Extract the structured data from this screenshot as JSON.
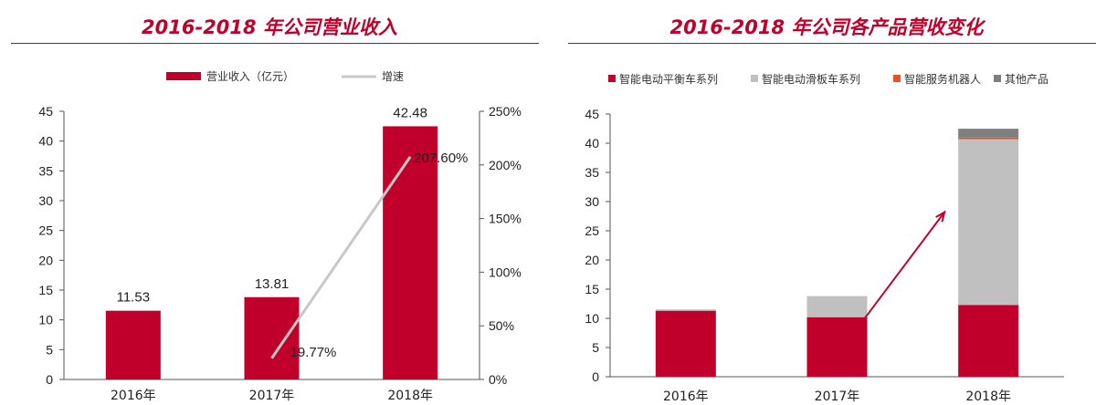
{
  "charts": {
    "left": {
      "title": "2016-2018 年公司营业收入",
      "chart_data": {
        "type": "bar",
        "categories": [
          "2016年",
          "2017年",
          "2018年"
        ],
        "series": [
          {
            "name": "营业收入（亿元）",
            "type": "bar",
            "axis": "left",
            "values": [
              11.53,
              13.81,
              42.48
            ],
            "color": "#c0002a"
          },
          {
            "name": "增速",
            "type": "line",
            "axis": "right",
            "values": [
              null,
              19.77,
              207.6
            ],
            "color": "#c8c8c8"
          }
        ],
        "data_labels_bar": [
          "11.53",
          "13.81",
          "42.48"
        ],
        "data_labels_line": [
          "",
          "19.77%",
          "207.60%"
        ],
        "ylim": [
          0,
          45
        ],
        "yticks": [
          "0",
          "5",
          "10",
          "15",
          "20",
          "25",
          "30",
          "35",
          "40",
          "45"
        ],
        "y2lim": [
          0,
          250
        ],
        "y2ticks": [
          "0%",
          "50%",
          "100%",
          "150%",
          "200%",
          "250%"
        ],
        "legend_position": "top",
        "grid": false
      }
    },
    "right": {
      "title": "2016-2018 年公司各产品营收变化",
      "chart_data": {
        "type": "bar",
        "stacked": true,
        "categories": [
          "2016年",
          "2017年",
          "2018年"
        ],
        "series": [
          {
            "name": "智能电动平衡车系列",
            "values": [
              11.3,
              10.2,
              12.3
            ],
            "color": "#c0002a"
          },
          {
            "name": "智能电动滑板车系列",
            "values": [
              0.23,
              3.61,
              28.4
            ],
            "color": "#c0c0c0"
          },
          {
            "name": "智能服务机器人",
            "values": [
              0,
              0,
              0.28
            ],
            "color": "#e8502b"
          },
          {
            "name": "其他产品",
            "values": [
              0,
              0,
              1.5
            ],
            "color": "#7f7f7f"
          }
        ],
        "ylim": [
          0,
          45
        ],
        "yticks": [
          "0",
          "5",
          "10",
          "15",
          "20",
          "25",
          "30",
          "35",
          "40",
          "45"
        ],
        "legend_position": "top",
        "grid": false,
        "annotation": "arrow from 2017年 to 2018年"
      }
    }
  }
}
